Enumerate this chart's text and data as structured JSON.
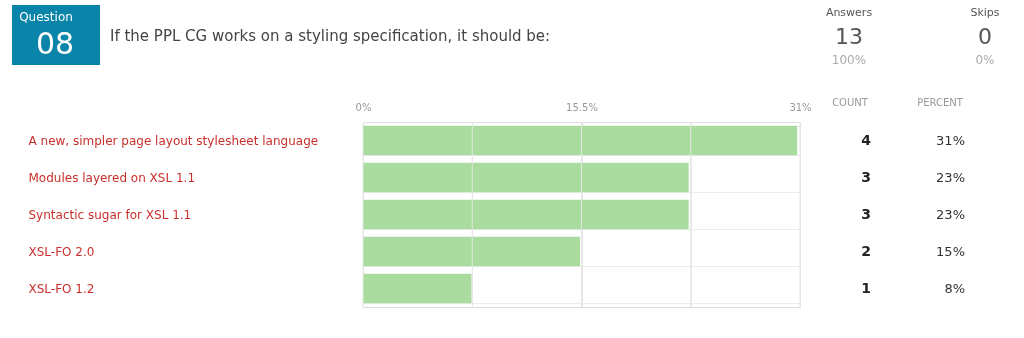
{
  "chart_data": {
    "type": "bar",
    "orientation": "horizontal",
    "title": "If the PPL CG works on a styling specification, it should be:",
    "categories": [
      "A new, simpler page layout stylesheet language",
      "Modules layered on XSL 1.1",
      "Syntactic sugar for XSL 1.1",
      "XSL-FO 2.0",
      "XSL-FO 1.2"
    ],
    "values": [
      30.8,
      23.1,
      23.1,
      15.4,
      7.7
    ],
    "value_labels": [
      "31%",
      "23%",
      "23%",
      "15%",
      "8%"
    ],
    "color": "#aadc9f",
    "xlim": [
      0,
      31
    ],
    "xticks": [
      {
        "value": 0,
        "label": "0%"
      },
      {
        "value": 7.75,
        "label": null
      },
      {
        "value": 15.5,
        "label": "15.5%"
      },
      {
        "value": 23.25,
        "label": null
      },
      {
        "value": 31,
        "label": "31%"
      }
    ],
    "grid": true,
    "annotations": [
      "Question",
      "08",
      "Answers",
      "13",
      "100%",
      "Skips",
      "0",
      "0%",
      "COUNT",
      "PERCENT",
      "4",
      "3",
      "3",
      "2",
      "1"
    ]
  }
}
